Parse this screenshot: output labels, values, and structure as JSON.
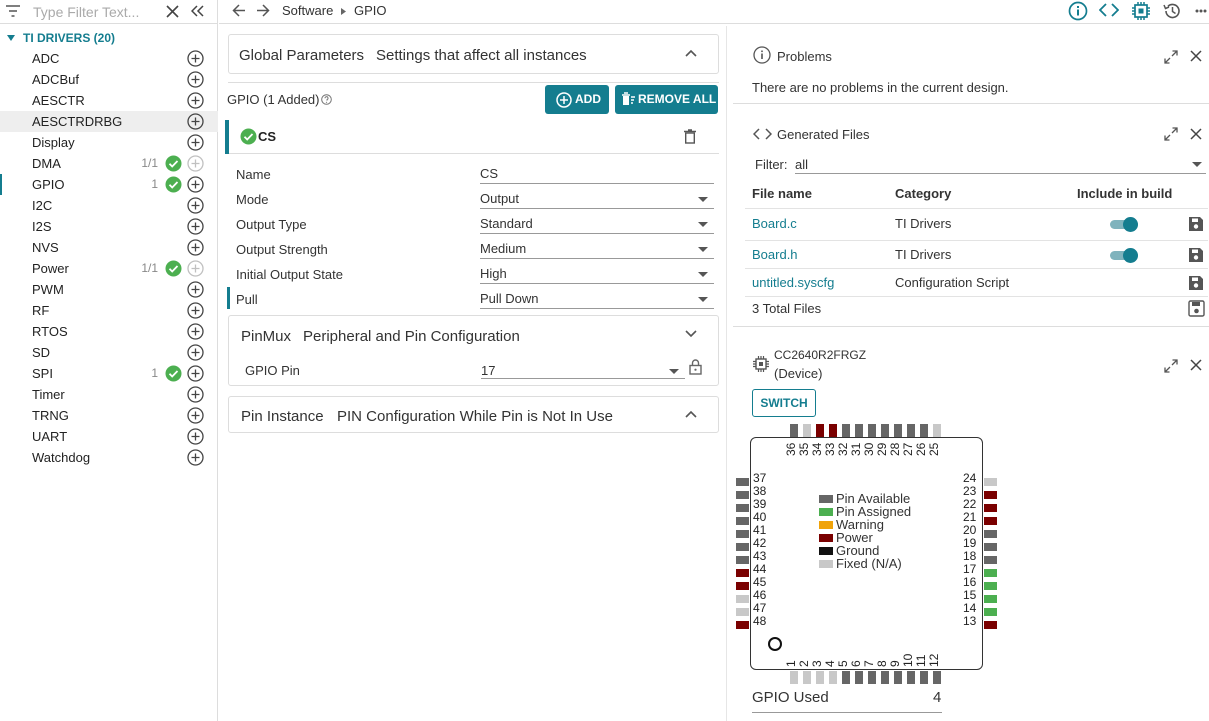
{
  "sidebar": {
    "filter_placeholder": "Type Filter Text...",
    "section_label": "TI DRIVERS (20)",
    "items": [
      {
        "label": "ADC",
        "count": "",
        "checked": false
      },
      {
        "label": "ADCBuf",
        "count": "",
        "checked": false
      },
      {
        "label": "AESCTR",
        "count": "",
        "checked": false
      },
      {
        "label": "AESCTRDRBG",
        "count": "",
        "checked": false,
        "selected": true
      },
      {
        "label": "Display",
        "count": "",
        "checked": false
      },
      {
        "label": "DMA",
        "count": "1/1",
        "checked": true,
        "disabled_add": true
      },
      {
        "label": "GPIO",
        "count": "1",
        "checked": true,
        "current": true
      },
      {
        "label": "I2C",
        "count": "",
        "checked": false
      },
      {
        "label": "I2S",
        "count": "",
        "checked": false
      },
      {
        "label": "NVS",
        "count": "",
        "checked": false
      },
      {
        "label": "Power",
        "count": "1/1",
        "checked": true,
        "disabled_add": true
      },
      {
        "label": "PWM",
        "count": "",
        "checked": false
      },
      {
        "label": "RF",
        "count": "",
        "checked": false
      },
      {
        "label": "RTOS",
        "count": "",
        "checked": false
      },
      {
        "label": "SD",
        "count": "",
        "checked": false
      },
      {
        "label": "SPI",
        "count": "1",
        "checked": true
      },
      {
        "label": "Timer",
        "count": "",
        "checked": false
      },
      {
        "label": "TRNG",
        "count": "",
        "checked": false
      },
      {
        "label": "UART",
        "count": "",
        "checked": false
      },
      {
        "label": "Watchdog",
        "count": "",
        "checked": false
      }
    ]
  },
  "topnav": {
    "crumb1": "Software",
    "crumb2": "GPIO"
  },
  "center": {
    "global_title": "Global Parameters",
    "global_sub": "Settings that affect all instances",
    "module_label": "GPIO (1 Added)",
    "add_label": "ADD",
    "remove_all_label": "REMOVE ALL",
    "instance_name": "CS",
    "props": [
      {
        "label": "Name",
        "value": "CS",
        "dropdown": false
      },
      {
        "label": "Mode",
        "value": "Output",
        "dropdown": true
      },
      {
        "label": "Output Type",
        "value": "Standard",
        "dropdown": true
      },
      {
        "label": "Output Strength",
        "value": "Medium",
        "dropdown": true
      },
      {
        "label": "Initial Output State",
        "value": "High",
        "dropdown": true
      },
      {
        "label": "Pull",
        "value": "Pull Down",
        "dropdown": true
      }
    ],
    "pinmux_title": "PinMux",
    "pinmux_sub": "Peripheral and Pin Configuration",
    "gpio_pin_label": "GPIO Pin",
    "gpio_pin_value": "17",
    "pininst_title": "Pin Instance",
    "pininst_sub": "PIN Configuration While Pin is Not In Use"
  },
  "problems": {
    "title": "Problems",
    "message": "There are no problems in the current design."
  },
  "generated": {
    "title": "Generated Files",
    "filter_label": "Filter:",
    "filter_value": "all",
    "col_file": "File name",
    "col_category": "Category",
    "col_include": "Include in build",
    "files": [
      {
        "name": "Board.c",
        "category": "TI Drivers",
        "include": true
      },
      {
        "name": "Board.h",
        "category": "TI Drivers",
        "include": true
      },
      {
        "name": "untitled.syscfg",
        "category": "Configuration Script",
        "include": null
      }
    ],
    "total": "3 Total Files"
  },
  "device": {
    "part": "CC2640R2FRGZ",
    "sub": "(Device)",
    "switch_label": "SWITCH",
    "legend": [
      {
        "label": "Pin Available",
        "color": "#666666"
      },
      {
        "label": "Pin Assigned",
        "color": "#4caf50"
      },
      {
        "label": "Warning",
        "color": "#f0a30a"
      },
      {
        "label": "Power",
        "color": "#7a0000"
      },
      {
        "label": "Ground",
        "color": "#111111"
      },
      {
        "label": "Fixed (N/A)",
        "color": "#c8c8c8"
      }
    ],
    "gpio_used_label": "GPIO Used",
    "gpio_used_value": "4",
    "pins": {
      "1": "fixed",
      "2": "fixed",
      "3": "fixed",
      "4": "fixed",
      "5": "available",
      "6": "available",
      "7": "available",
      "8": "available",
      "9": "available",
      "10": "available",
      "11": "available",
      "12": "available",
      "13": "power",
      "14": "assigned",
      "15": "assigned",
      "16": "assigned",
      "17": "assigned",
      "18": "available",
      "19": "available",
      "20": "available",
      "21": "power",
      "22": "power",
      "23": "power",
      "24": "fixed",
      "25": "fixed",
      "26": "available",
      "27": "available",
      "28": "available",
      "29": "available",
      "30": "available",
      "31": "available",
      "32": "available",
      "33": "power",
      "34": "power",
      "35": "fixed",
      "36": "available",
      "37": "available",
      "38": "available",
      "39": "available",
      "40": "available",
      "41": "available",
      "42": "available",
      "43": "available",
      "44": "power",
      "45": "power",
      "46": "fixed",
      "47": "fixed",
      "48": "power"
    }
  }
}
